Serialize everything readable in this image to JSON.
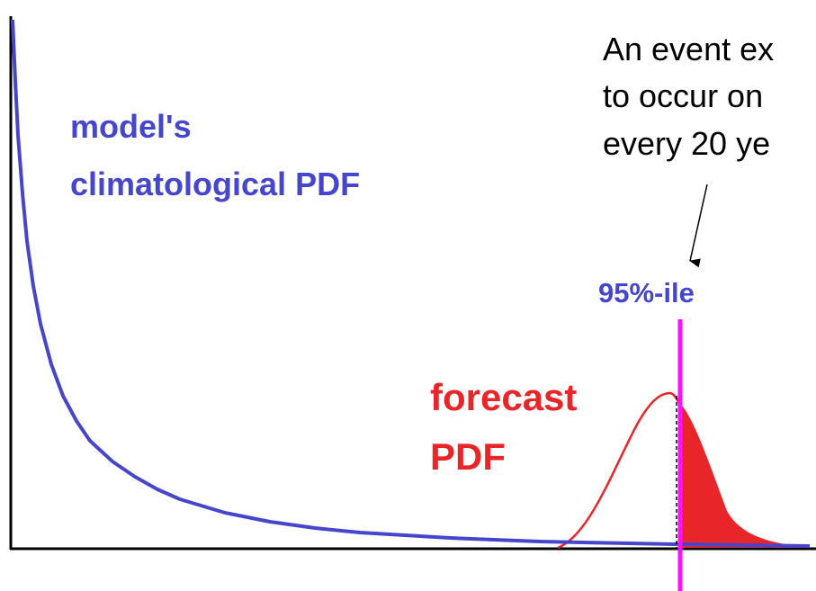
{
  "labels": {
    "climatology": [
      "model's",
      "climatological PDF"
    ],
    "forecast": [
      "forecast",
      "PDF"
    ],
    "percentile": "95%-ile",
    "annotation": [
      "An event ex",
      "to occur on",
      "every 20 ye"
    ]
  }
}
